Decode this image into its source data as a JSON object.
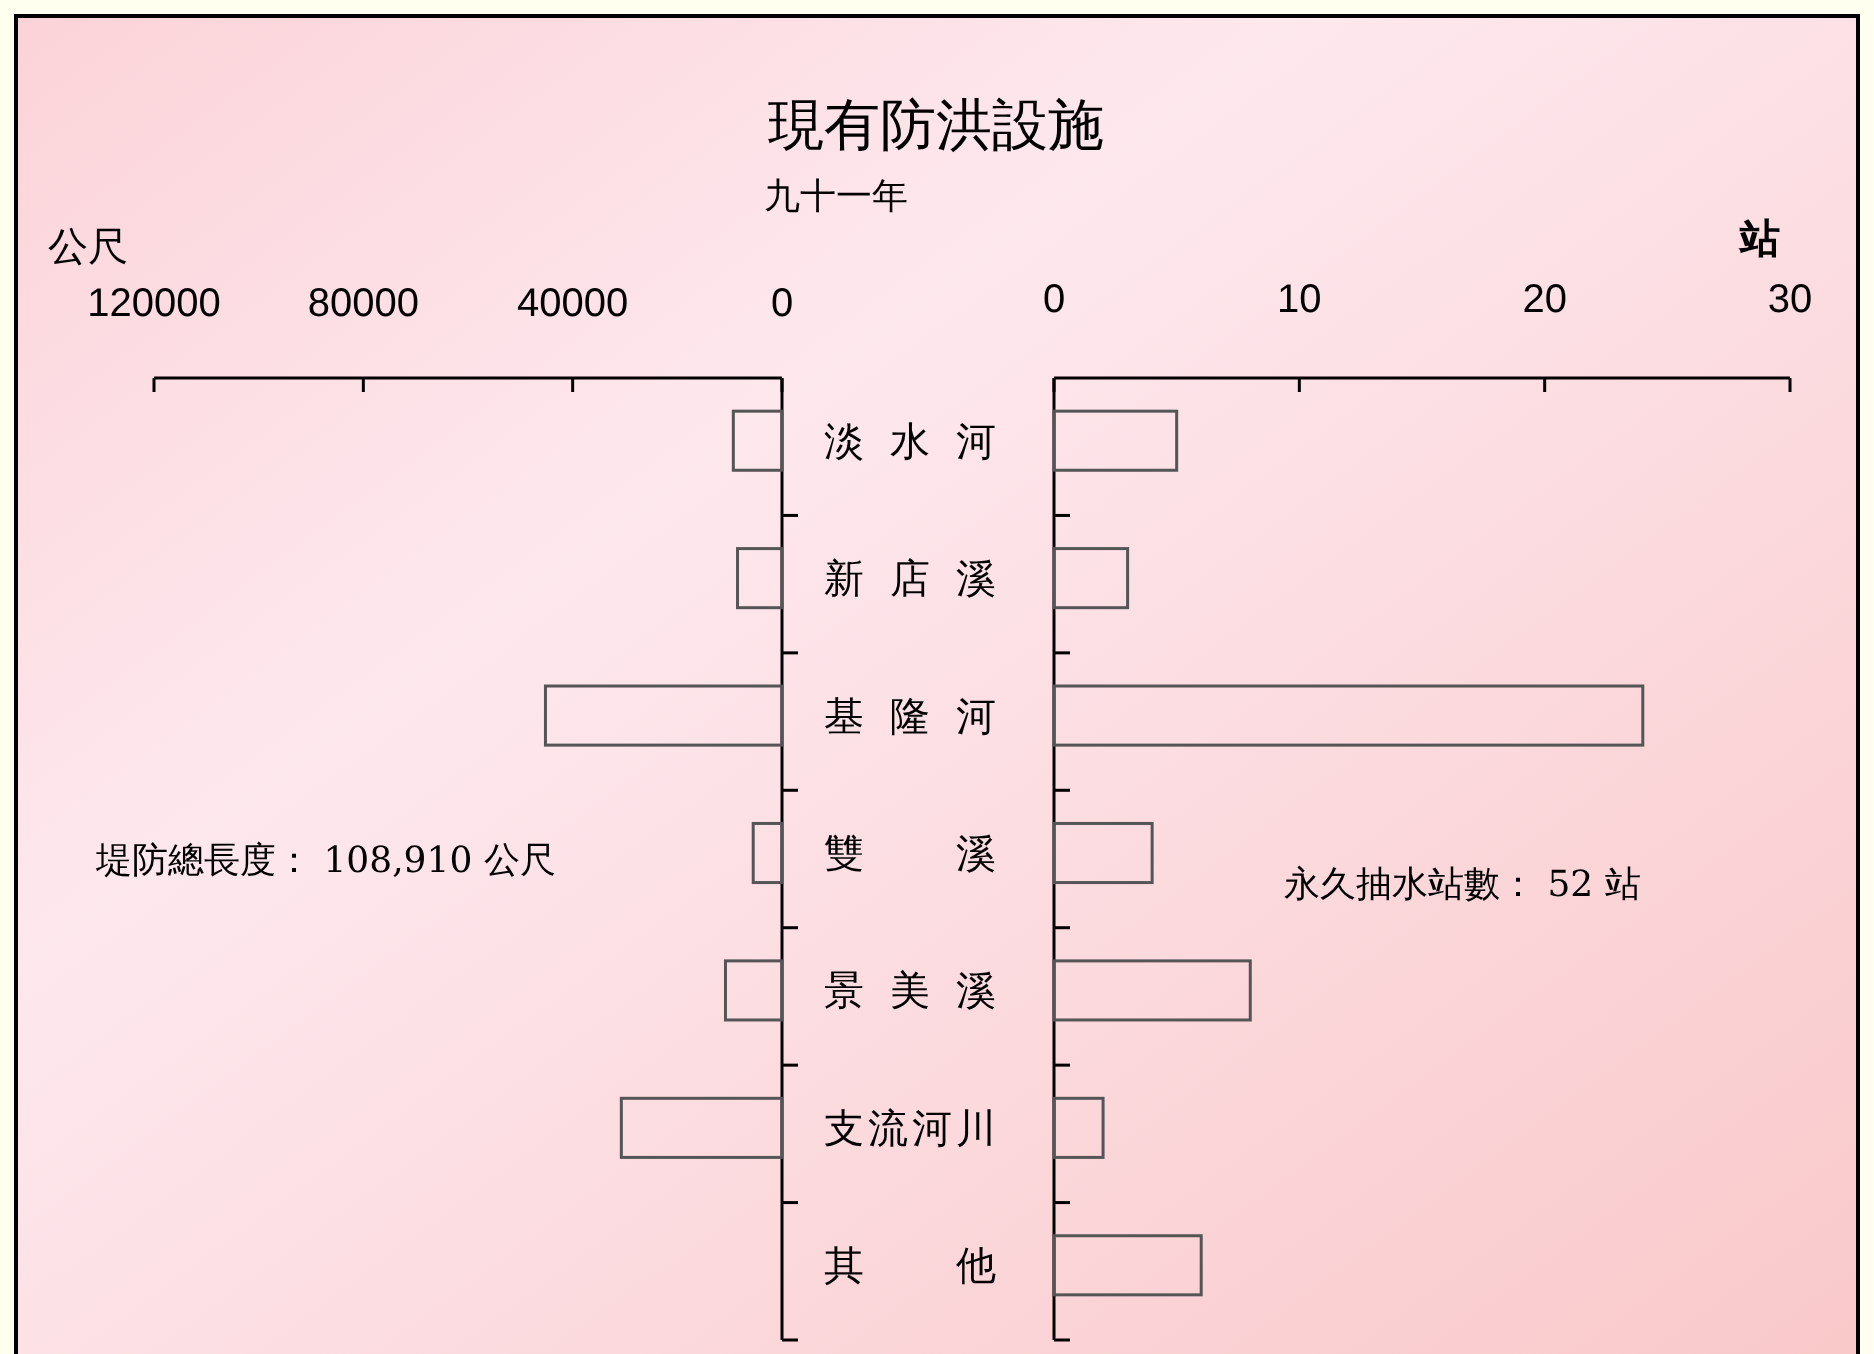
{
  "chart_data": [
    {
      "type": "bar",
      "orientation": "horizontal",
      "title": "現有防洪設施",
      "subtitle": "九十一年",
      "xlabel": "公尺",
      "categories": [
        null,
        null,
        null,
        null,
        null,
        null,
        null
      ],
      "values": [
        9300,
        8500,
        45200,
        5500,
        10800,
        30700,
        0
      ],
      "color": "#555555",
      "xlim": [
        120000,
        0
      ],
      "xticks": [
        120000,
        80000,
        40000,
        0
      ],
      "tick_labels": "x",
      "annotations": [
        "堤防總長度： 108,910 公尺"
      ]
    },
    {
      "type": "bar",
      "orientation": "horizontal",
      "xlabel": "站",
      "categories": [
        "淡水河",
        "新店溪",
        "基隆河",
        "雙溪",
        "景美溪",
        "支流河川",
        "其他"
      ],
      "values": [
        5,
        3,
        24,
        4,
        8,
        2,
        6
      ],
      "color": "#555555",
      "xlim": [
        0,
        30
      ],
      "xticks": [
        0,
        10,
        20,
        30
      ],
      "annotations": [
        "永久抽水站數： 52 站"
      ]
    }
  ]
}
